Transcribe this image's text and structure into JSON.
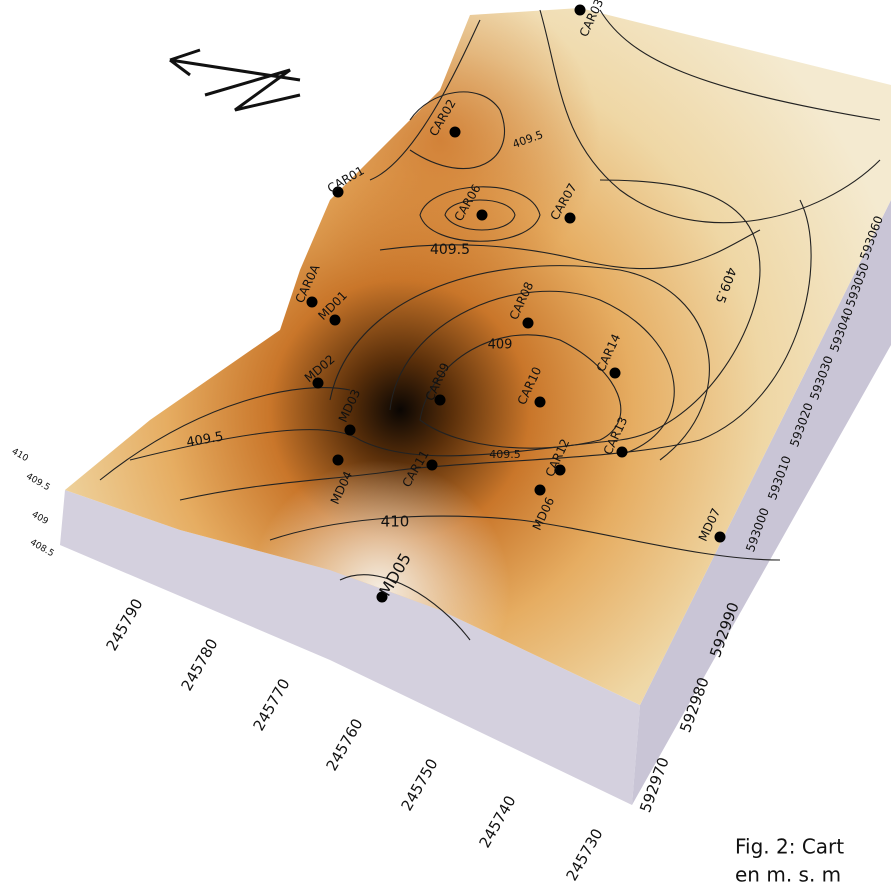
{
  "wells": [
    "CAR03",
    "CAR02",
    "CAR01",
    "CAR06",
    "CAR07",
    "CAR0A",
    "MD01",
    "CAR08",
    "CAR14",
    "MD02",
    "CAR09",
    "CAR10",
    "MD03",
    "CAR13",
    "MD04",
    "CAR11",
    "CAR12",
    "MD06",
    "MD07",
    "MD05"
  ],
  "contour_labels": [
    409.5,
    409.5,
    409.5,
    409,
    409.5,
    409.5,
    410
  ],
  "x_ticks": [
    245790,
    245780,
    245770,
    245760,
    245750,
    245740,
    245730
  ],
  "y_ticks": [
    593060,
    593050,
    593040,
    593030,
    593020,
    593010,
    593000,
    592990,
    592980,
    592970
  ],
  "z_ticks": [
    410,
    409.5,
    409,
    408.5
  ],
  "caption": [
    "Fig. 2: Cart",
    "en m. s. m"
  ]
}
